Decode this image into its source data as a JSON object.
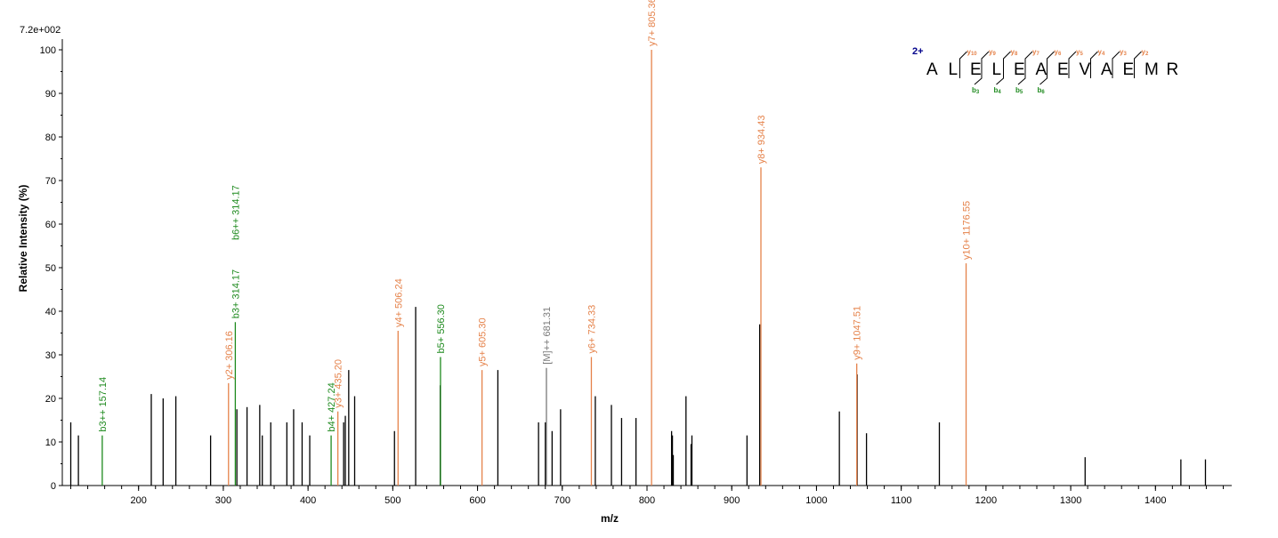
{
  "chart_data": {
    "type": "bar",
    "intensity_label": "7.2e+002",
    "xlabel": "m/z",
    "ylabel": "Relative   Intensity (%)",
    "xlim": [
      110,
      1490
    ],
    "ylim": [
      0,
      100
    ],
    "xticks": [
      200,
      300,
      400,
      500,
      600,
      700,
      800,
      900,
      1000,
      1100,
      1200,
      1300,
      1400
    ],
    "yticks": [
      0,
      10,
      20,
      30,
      40,
      50,
      60,
      70,
      80,
      90,
      100
    ],
    "colors": {
      "b": "#1e8a1e",
      "y": "#e5824a",
      "M": "#7a7a7a",
      "unassigned": "#000000",
      "charge": "#00008b"
    },
    "annotated_peaks": [
      {
        "mz": 157.14,
        "intensity": 11.5,
        "ion": "b",
        "label": "b3++ 157.14"
      },
      {
        "mz": 306.16,
        "intensity": 23.5,
        "ion": "y",
        "label": "y2+ 306.16"
      },
      {
        "mz": 314.17,
        "intensity": 37.5,
        "ion": "b",
        "label": "b3+ 314.17"
      },
      {
        "mz": 314.17,
        "intensity": 55.5,
        "ion": "b",
        "label": "b6++ 314.17",
        "label_only": true
      },
      {
        "mz": 427.24,
        "intensity": 11.5,
        "ion": "b",
        "label": "b4+ 427.24"
      },
      {
        "mz": 435.2,
        "intensity": 17.0,
        "ion": "y",
        "label": "y3+ 435.20"
      },
      {
        "mz": 506.24,
        "intensity": 35.5,
        "ion": "y",
        "label": "y4+ 506.24"
      },
      {
        "mz": 556.3,
        "intensity": 29.5,
        "ion": "b",
        "label": "b5+ 556.30"
      },
      {
        "mz": 605.3,
        "intensity": 26.5,
        "ion": "y",
        "label": "y5+ 605.30"
      },
      {
        "mz": 681.31,
        "intensity": 27.0,
        "ion": "M",
        "label": "[M]++ 681.31"
      },
      {
        "mz": 734.33,
        "intensity": 29.5,
        "ion": "y",
        "label": "y6+ 734.33"
      },
      {
        "mz": 805.36,
        "intensity": 100.0,
        "ion": "y",
        "label": "y7+ 805.36"
      },
      {
        "mz": 934.43,
        "intensity": 73.0,
        "ion": "y",
        "label": "y8+ 934.43"
      },
      {
        "mz": 1047.51,
        "intensity": 28.0,
        "ion": "y",
        "label": "y9+ 1047.51"
      },
      {
        "mz": 1176.55,
        "intensity": 51.0,
        "ion": "y",
        "label": "y10+ 1176.55"
      }
    ],
    "unassigned_peaks": [
      [
        120,
        14.5
      ],
      [
        129,
        11.5
      ],
      [
        215,
        21
      ],
      [
        229,
        20
      ],
      [
        244,
        20.5
      ],
      [
        285,
        11.5
      ],
      [
        316,
        17.5
      ],
      [
        328,
        18
      ],
      [
        343,
        18.5
      ],
      [
        346,
        11.5
      ],
      [
        356,
        14.5
      ],
      [
        375,
        14.5
      ],
      [
        383,
        17.5
      ],
      [
        393,
        14.5
      ],
      [
        402,
        11.5
      ],
      [
        442,
        14.5
      ],
      [
        444,
        16
      ],
      [
        448,
        26.5
      ],
      [
        455,
        20.5
      ],
      [
        502,
        12.5
      ],
      [
        527,
        41
      ],
      [
        556,
        23
      ],
      [
        624,
        26.5
      ],
      [
        672,
        14.5
      ],
      [
        680,
        14.5
      ],
      [
        688,
        12.5
      ],
      [
        698,
        17.5
      ],
      [
        739,
        20.5
      ],
      [
        758,
        18.5
      ],
      [
        770,
        15.5
      ],
      [
        787,
        15.5
      ],
      [
        829,
        12.5
      ],
      [
        830,
        11.5
      ],
      [
        831,
        7
      ],
      [
        846,
        20.5
      ],
      [
        852,
        9.5
      ],
      [
        853,
        11.5
      ],
      [
        918,
        11.5
      ],
      [
        933,
        37
      ],
      [
        1027,
        17
      ],
      [
        1048,
        25.5
      ],
      [
        1059,
        12
      ],
      [
        1145,
        14.5
      ],
      [
        1317,
        6.5
      ],
      [
        1430,
        6
      ],
      [
        1459,
        6
      ]
    ],
    "sequence": {
      "charge": "2+",
      "residues": [
        "A",
        "L",
        "E",
        "L",
        "E",
        "A",
        "E",
        "V",
        "A",
        "E",
        "M",
        "R"
      ],
      "y_ions": [
        {
          "name": "y",
          "num": "10",
          "after": 2
        },
        {
          "name": "y",
          "num": "9",
          "after": 3
        },
        {
          "name": "y",
          "num": "8",
          "after": 4
        },
        {
          "name": "y",
          "num": "7",
          "after": 5
        },
        {
          "name": "y",
          "num": "6",
          "after": 6
        },
        {
          "name": "y",
          "num": "5",
          "after": 7
        },
        {
          "name": "y",
          "num": "4",
          "after": 8
        },
        {
          "name": "y",
          "num": "3",
          "after": 9
        },
        {
          "name": "y",
          "num": "2",
          "after": 10
        }
      ],
      "b_ions": [
        {
          "name": "b",
          "num": "3",
          "after": 3
        },
        {
          "name": "b",
          "num": "4",
          "after": 4
        },
        {
          "name": "b",
          "num": "5",
          "after": 5
        },
        {
          "name": "b",
          "num": "6",
          "after": 6
        }
      ]
    }
  }
}
